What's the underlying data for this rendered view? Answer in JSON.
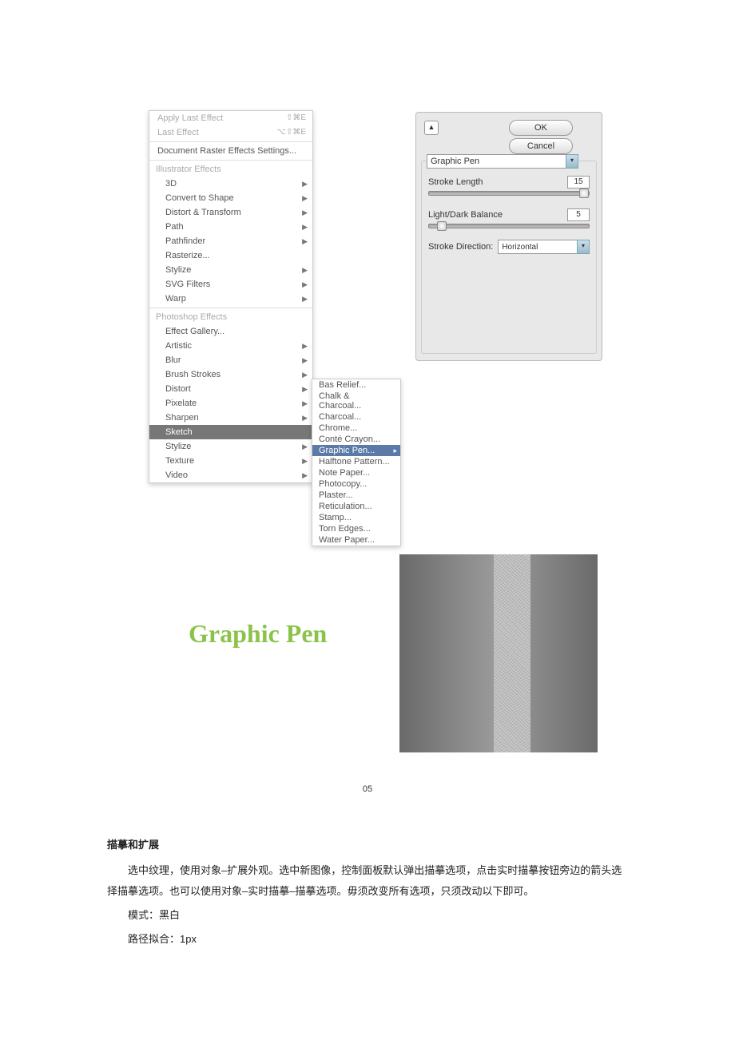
{
  "menu": {
    "apply_last": "Apply Last Effect",
    "apply_last_sc": "⇧⌘E",
    "last_effect": "Last Effect",
    "last_effect_sc": "⌥⇧⌘E",
    "doc_raster": "Document Raster Effects Settings...",
    "illus_hdr": "Illustrator Effects",
    "illus": [
      "3D",
      "Convert to Shape",
      "Distort & Transform",
      "Path",
      "Pathfinder",
      "Rasterize...",
      "Stylize",
      "SVG Filters",
      "Warp"
    ],
    "illus_arrows": [
      true,
      true,
      true,
      true,
      true,
      false,
      true,
      true,
      true
    ],
    "ps_hdr": "Photoshop Effects",
    "ps": [
      "Effect Gallery...",
      "Artistic",
      "Blur",
      "Brush Strokes",
      "Distort",
      "Pixelate",
      "Sharpen",
      "Sketch",
      "Stylize",
      "Texture",
      "Video"
    ],
    "ps_arrows": [
      false,
      true,
      true,
      true,
      true,
      true,
      true,
      true,
      true,
      true,
      true
    ],
    "ps_sel": 7
  },
  "submenu": {
    "items": [
      "Bas Relief...",
      "Chalk & Charcoal...",
      "Charcoal...",
      "Chrome...",
      "Conté Crayon...",
      "Graphic Pen...",
      "Halftone Pattern...",
      "Note Paper...",
      "Photocopy...",
      "Plaster...",
      "Reticulation...",
      "Stamp...",
      "Torn Edges...",
      "Water Paper..."
    ],
    "sel": 5
  },
  "panel": {
    "ok": "OK",
    "cancel": "Cancel",
    "collapse": "▲",
    "filter_name": "Graphic Pen",
    "p1_label": "Stroke Length",
    "p1_val": "15",
    "p1_pos": 0.94,
    "p2_label": "Light/Dark Balance",
    "p2_val": "5",
    "p2_pos": 0.05,
    "dir_label": "Stroke Direction:",
    "dir_val": "Horizontal"
  },
  "title": "Graphic Pen",
  "pgnum": "05",
  "article": {
    "h": "描摹和扩展",
    "p1": "选中纹理，使用对象–扩展外观。选中新图像，控制面板默认弹出描摹选项，点击实时描摹按钮旁边的箭头选择描摹选项。也可以使用对象–实时描摹–描摹选项。毋须改变所有选项，只须改动以下即可。",
    "p2": "模式：黑白",
    "p3": "路径拟合：1px"
  }
}
